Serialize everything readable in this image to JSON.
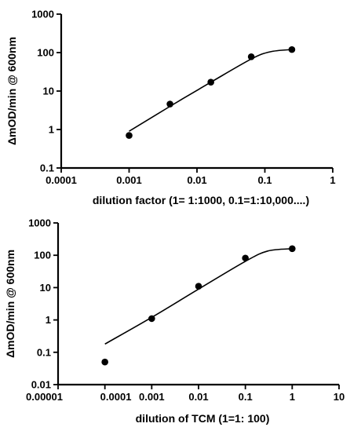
{
  "chart_data": [
    {
      "type": "scatter",
      "scale": "log-log",
      "xlabel": "dilution factor (1= 1:1000, 0.1=1:10,000....)",
      "ylabel": "ΔmOD/min @ 600nm",
      "xlim": [
        0.0001,
        1
      ],
      "ylim": [
        0.1,
        1000
      ],
      "x_ticks": [
        "0.0001",
        "0.001",
        "0.01",
        "0.1",
        "1"
      ],
      "y_ticks": [
        "0.1",
        "1",
        "10",
        "100",
        "1000"
      ],
      "points": [
        {
          "x": 0.001,
          "y": 0.7
        },
        {
          "x": 0.004,
          "y": 4.6
        },
        {
          "x": 0.016,
          "y": 17
        },
        {
          "x": 0.063,
          "y": 78
        },
        {
          "x": 0.25,
          "y": 120
        }
      ],
      "fit_curve": [
        {
          "x": 0.001,
          "y": 0.9
        },
        {
          "x": 0.004,
          "y": 4.0
        },
        {
          "x": 0.016,
          "y": 17
        },
        {
          "x": 0.063,
          "y": 68
        },
        {
          "x": 0.12,
          "y": 105
        },
        {
          "x": 0.25,
          "y": 120
        }
      ]
    },
    {
      "type": "scatter",
      "scale": "log-log",
      "xlabel": "dilution of TCM (1=1: 100)",
      "ylabel": "ΔmOD/min @ 600nm",
      "xlim": [
        1e-05,
        10
      ],
      "ylim": [
        0.01,
        1000
      ],
      "x_ticks": [
        "0.00001",
        "0.0001",
        "0.001",
        "0.01",
        "0.1",
        "1",
        "10"
      ],
      "y_ticks": [
        "0.01",
        "0.1",
        "1",
        "10",
        "100",
        "1000"
      ],
      "points": [
        {
          "x": 0.0001,
          "y": 0.05
        },
        {
          "x": 0.001,
          "y": 1.1
        },
        {
          "x": 0.01,
          "y": 11
        },
        {
          "x": 0.1,
          "y": 82
        },
        {
          "x": 1,
          "y": 160
        }
      ],
      "fit_curve": [
        {
          "x": 0.0001,
          "y": 0.18
        },
        {
          "x": 0.001,
          "y": 1.2
        },
        {
          "x": 0.01,
          "y": 9
        },
        {
          "x": 0.1,
          "y": 65
        },
        {
          "x": 0.3,
          "y": 135
        },
        {
          "x": 1,
          "y": 160
        }
      ]
    }
  ]
}
